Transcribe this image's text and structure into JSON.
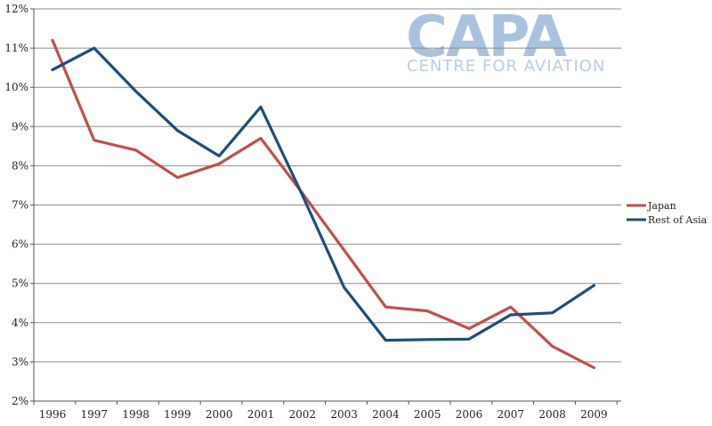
{
  "logo": {
    "name": "CAPA",
    "subtitle": "CENTRE FOR AVIATION"
  },
  "chart_data": {
    "type": "line",
    "title": "",
    "xlabel": "",
    "ylabel": "",
    "x": [
      "1996",
      "1997",
      "1998",
      "1999",
      "2000",
      "2001",
      "2002",
      "2003",
      "2004",
      "2005",
      "2006",
      "2007",
      "2008",
      "2009"
    ],
    "y_ticks": [
      "2%",
      "3%",
      "4%",
      "5%",
      "6%",
      "7%",
      "8%",
      "9%",
      "10%",
      "11%",
      "12%"
    ],
    "ylim": [
      2,
      12
    ],
    "y_unit": "%",
    "grid": true,
    "legend_position": "right",
    "series": [
      {
        "name": "Japan",
        "color": "#c0504d",
        "values": [
          11.2,
          8.65,
          8.4,
          7.7,
          8.05,
          8.7,
          7.3,
          5.85,
          4.4,
          4.3,
          3.85,
          4.4,
          3.4,
          2.85
        ]
      },
      {
        "name": "Rest of Asia",
        "color": "#1f4e79",
        "values": [
          10.45,
          11.0,
          9.9,
          8.9,
          8.25,
          9.5,
          7.25,
          4.9,
          3.55,
          3.57,
          3.58,
          4.2,
          4.25,
          4.95
        ]
      }
    ]
  }
}
